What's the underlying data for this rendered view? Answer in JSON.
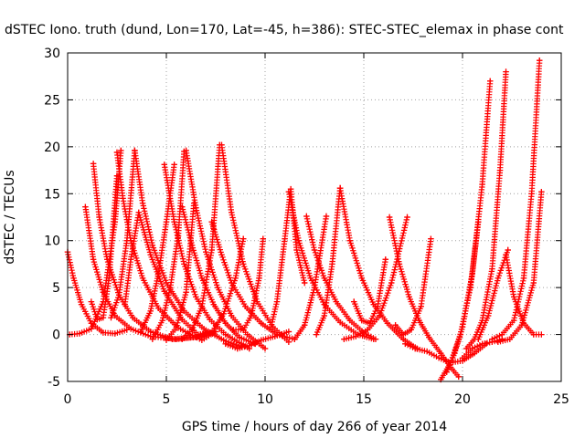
{
  "chart_data": {
    "type": "scatter",
    "title": "dSTEC Iono. truth (dund, Lon=170, Lat=-45, h=386): STEC-STEC_elemax in phase cont",
    "xlabel": "GPS time / hours of day 266 of year 2014",
    "ylabel": "dSTEC  / TECUs",
    "xlim": [
      0,
      25
    ],
    "ylim": [
      -5,
      30
    ],
    "xticks": [
      0,
      5,
      10,
      15,
      20,
      25
    ],
    "yticks": [
      -5,
      0,
      5,
      10,
      15,
      20,
      25,
      30
    ],
    "grid": true,
    "marker": "+",
    "colors": {
      "series": "#ff0000",
      "grid": "#a0a0a0",
      "axis": "#000000"
    },
    "series": [
      {
        "x": [
          0.0,
          0.3,
          0.7,
          1.2,
          1.8,
          2.4,
          3.0
        ],
        "y": [
          8.8,
          6.0,
          3.2,
          1.2,
          0.2,
          0.1,
          0.5
        ]
      },
      {
        "x": [
          0.1,
          0.6,
          1.2,
          1.8,
          2.4,
          2.7
        ],
        "y": [
          0.0,
          0.1,
          0.6,
          3.5,
          12.0,
          19.6
        ]
      },
      {
        "x": [
          0.9,
          1.3,
          1.8,
          2.4,
          3.2,
          4.2,
          5.5,
          6.7
        ],
        "y": [
          13.6,
          8.0,
          4.5,
          2.0,
          0.6,
          -0.2,
          -0.5,
          -0.2
        ]
      },
      {
        "x": [
          1.3,
          1.6,
          2.0,
          2.6,
          3.3,
          4.2,
          5.3,
          6.5,
          7.0
        ],
        "y": [
          18.2,
          12.5,
          8.0,
          4.2,
          1.8,
          0.3,
          -0.5,
          -0.3,
          0.2
        ]
      },
      {
        "x": [
          1.2,
          1.5,
          1.8,
          2.1,
          2.5
        ],
        "y": [
          3.5,
          1.6,
          1.8,
          6.0,
          16.9
        ]
      },
      {
        "x": [
          2.5,
          2.8,
          3.2,
          3.8,
          4.6,
          5.6,
          6.8,
          7.5
        ],
        "y": [
          19.4,
          14.5,
          10.0,
          6.0,
          2.8,
          0.7,
          -0.6,
          0.3
        ]
      },
      {
        "x": [
          2.2,
          2.6,
          3.0,
          3.4
        ],
        "y": [
          1.8,
          4.2,
          10.0,
          19.6
        ]
      },
      {
        "x": [
          3.4,
          3.8,
          4.3,
          5.0,
          5.9,
          6.9,
          7.9,
          8.8
        ],
        "y": [
          19.6,
          14.0,
          9.5,
          5.5,
          2.5,
          0.6,
          -0.6,
          -1.3
        ]
      },
      {
        "x": [
          2.9,
          3.2,
          3.6,
          4.2,
          4.9,
          5.8,
          6.6,
          7.2
        ],
        "y": [
          3.2,
          8.0,
          13.0,
          8.5,
          4.6,
          1.6,
          0.0,
          0.2
        ]
      },
      {
        "x": [
          3.7,
          4.2,
          4.6,
          5.0,
          5.4
        ],
        "y": [
          0.3,
          2.5,
          6.5,
          12.0,
          18.1
        ]
      },
      {
        "x": [
          4.9,
          5.4,
          5.9,
          6.5,
          7.2,
          8.0,
          8.8,
          9.2
        ],
        "y": [
          18.1,
          12.0,
          7.5,
          4.0,
          1.6,
          0.0,
          -1.0,
          -1.5
        ]
      },
      {
        "x": [
          4.3,
          4.8,
          5.2,
          5.6,
          5.9
        ],
        "y": [
          -0.5,
          1.5,
          5.0,
          10.5,
          19.5
        ]
      },
      {
        "x": [
          6.0,
          6.5,
          7.0,
          7.6,
          8.3,
          9.1,
          10.0
        ],
        "y": [
          19.6,
          13.5,
          8.8,
          5.0,
          2.0,
          0.0,
          -1.5
        ]
      },
      {
        "x": [
          5.0,
          5.5,
          6.0,
          6.4
        ],
        "y": [
          -0.6,
          0.7,
          4.5,
          14.0
        ]
      },
      {
        "x": [
          5.8,
          6.3,
          6.8,
          7.4,
          8.0,
          8.7,
          9.5
        ],
        "y": [
          13.6,
          9.5,
          6.0,
          3.2,
          1.2,
          -0.3,
          -1.0
        ]
      },
      {
        "x": [
          5.8,
          6.3,
          6.8,
          7.3,
          7.7
        ],
        "y": [
          -0.5,
          0.5,
          3.0,
          9.0,
          20.2
        ]
      },
      {
        "x": [
          7.8,
          8.3,
          8.9,
          9.6,
          10.4,
          11.2
        ],
        "y": [
          20.2,
          13.0,
          7.5,
          3.5,
          0.8,
          -0.8
        ]
      },
      {
        "x": [
          7.3,
          7.8,
          8.3,
          9.0,
          9.8,
          10.6,
          11.5
        ],
        "y": [
          12.0,
          8.5,
          5.5,
          3.0,
          1.2,
          0.0,
          -0.5
        ]
      },
      {
        "x": [
          6.8,
          7.3,
          7.9,
          8.5,
          8.9
        ],
        "y": [
          -0.3,
          0.2,
          2.2,
          6.0,
          10.2
        ]
      },
      {
        "x": [
          8.4,
          8.9,
          9.3,
          9.7,
          9.9
        ],
        "y": [
          0.5,
          0.5,
          2.0,
          6.0,
          10.2
        ]
      },
      {
        "x": [
          8.0,
          8.6,
          9.2,
          9.8,
          10.5,
          11.2
        ],
        "y": [
          -1.0,
          -1.5,
          -1.2,
          -0.6,
          -0.2,
          0.3
        ]
      },
      {
        "x": [
          10.3,
          10.6,
          11.0,
          11.3,
          11.6,
          12.0
        ],
        "y": [
          0.8,
          3.5,
          10.2,
          15.5,
          9.0,
          5.5
        ]
      },
      {
        "x": [
          11.2,
          11.7,
          12.3,
          13.0,
          13.8,
          14.7,
          15.5
        ],
        "y": [
          15.2,
          10.0,
          6.0,
          3.2,
          1.3,
          0.0,
          -0.5
        ]
      },
      {
        "x": [
          11.5,
          12.0,
          12.5,
          13.1
        ],
        "y": [
          -0.5,
          1.0,
          5.0,
          12.6
        ]
      },
      {
        "x": [
          12.1,
          12.5,
          13.0,
          13.6,
          14.3,
          15.0,
          15.6
        ],
        "y": [
          12.6,
          9.0,
          6.0,
          3.5,
          1.5,
          0.2,
          -0.5
        ]
      },
      {
        "x": [
          12.6,
          13.0,
          13.4,
          13.8
        ],
        "y": [
          0.0,
          2.0,
          7.5,
          15.6
        ]
      },
      {
        "x": [
          13.8,
          14.3,
          14.9,
          15.5,
          16.2,
          17.0,
          17.7
        ],
        "y": [
          15.6,
          10.0,
          6.0,
          3.2,
          1.2,
          -0.5,
          -1.5
        ]
      },
      {
        "x": [
          14.0,
          14.6,
          15.2,
          15.8,
          16.4,
          17.2
        ],
        "y": [
          -0.5,
          -0.2,
          0.5,
          2.0,
          5.5,
          12.5
        ]
      },
      {
        "x": [
          14.5,
          14.9,
          15.3,
          15.7,
          16.1
        ],
        "y": [
          3.5,
          1.5,
          1.2,
          3.0,
          8.0
        ]
      },
      {
        "x": [
          16.3,
          16.8,
          17.3,
          17.8,
          18.3,
          18.9,
          19.4,
          19.8
        ],
        "y": [
          12.5,
          7.5,
          4.0,
          1.5,
          -0.3,
          -2.0,
          -3.5,
          -4.5
        ]
      },
      {
        "x": [
          16.6,
          17.0,
          17.4,
          17.9,
          18.4
        ],
        "y": [
          1.0,
          0.0,
          0.5,
          3.0,
          10.2
        ]
      },
      {
        "x": [
          17.1,
          17.6,
          18.2,
          18.8,
          19.4,
          20.0,
          20.6,
          21.2
        ],
        "y": [
          -1.0,
          -1.5,
          -1.8,
          -2.5,
          -3.0,
          -2.8,
          -2.0,
          -1.0
        ]
      },
      {
        "x": [
          18.9,
          19.4,
          19.9,
          20.4,
          20.8
        ],
        "y": [
          -4.8,
          -3.0,
          0.0,
          5.0,
          12.0
        ]
      },
      {
        "x": [
          19.2,
          19.6,
          20.0,
          20.5,
          21.0,
          21.4
        ],
        "y": [
          -4.0,
          -2.0,
          0.8,
          6.5,
          16.0,
          27.0
        ]
      },
      {
        "x": [
          20.2,
          20.6,
          21.0,
          21.5,
          21.9,
          22.2
        ],
        "y": [
          -1.5,
          -0.5,
          1.5,
          7.0,
          17.5,
          28.0
        ]
      },
      {
        "x": [
          20.8,
          21.3,
          21.8,
          22.3
        ],
        "y": [
          -0.5,
          2.0,
          6.0,
          9.0
        ]
      },
      {
        "x": [
          22.2,
          22.6,
          23.1,
          23.6,
          24.0
        ],
        "y": [
          8.5,
          4.0,
          1.2,
          0.0,
          0.0
        ]
      },
      {
        "x": [
          21.5,
          22.0,
          22.6,
          23.1,
          23.5,
          23.9
        ],
        "y": [
          -0.5,
          0.0,
          1.5,
          6.0,
          15.0,
          29.2
        ]
      },
      {
        "x": [
          21.8,
          22.4,
          23.0,
          23.6,
          24.0
        ],
        "y": [
          -0.8,
          -0.5,
          1.0,
          5.5,
          15.2
        ]
      },
      {
        "x": [
          20.0,
          20.5,
          21.0,
          21.5,
          22.0
        ],
        "y": [
          -2.5,
          -1.5,
          -1.0,
          -0.8,
          -0.5
        ]
      }
    ]
  }
}
